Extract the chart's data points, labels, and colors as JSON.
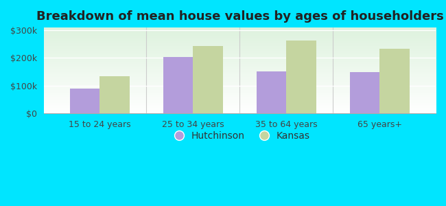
{
  "title": "Breakdown of mean house values by ages of householders",
  "categories": [
    "15 to 24 years",
    "25 to 34 years",
    "35 to 64 years",
    "65 years+"
  ],
  "hutchinson_values": [
    90000,
    203000,
    152000,
    148000
  ],
  "kansas_values": [
    133000,
    243000,
    263000,
    233000
  ],
  "hutchinson_color": "#b39ddb",
  "kansas_color": "#c5d5a0",
  "outer_background": "#00e5ff",
  "ylim": [
    0,
    310000
  ],
  "yticks": [
    0,
    100000,
    200000,
    300000
  ],
  "ytick_labels": [
    "$0",
    "$100k",
    "$200k",
    "$300k"
  ],
  "legend_hutchinson": "Hutchinson",
  "legend_kansas": "Kansas",
  "bar_width": 0.32,
  "title_fontsize": 13,
  "tick_fontsize": 9,
  "legend_fontsize": 10
}
